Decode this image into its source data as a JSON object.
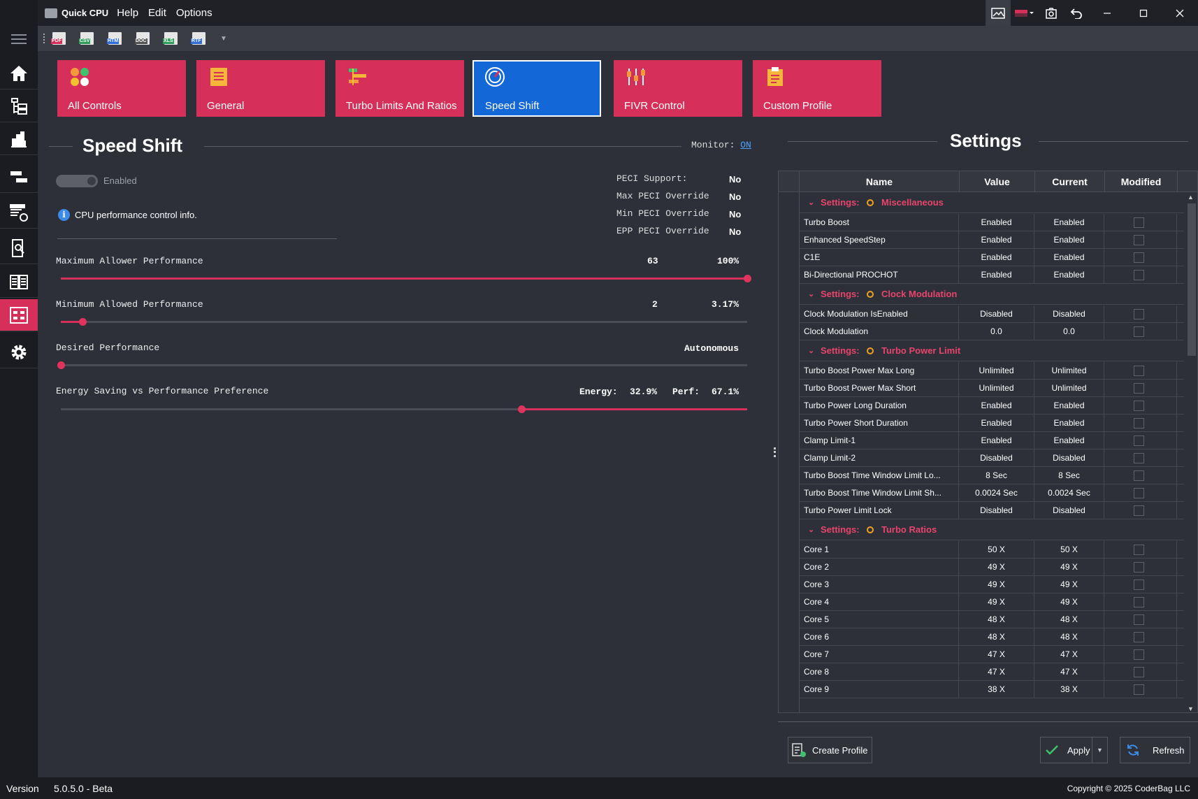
{
  "titlebar": {
    "app_name": "Quick CPU",
    "menus": [
      "Help",
      "Edit",
      "Options"
    ]
  },
  "toolbar": {
    "file_types": [
      "PDF",
      "CSV",
      "HTM",
      "DOC",
      "XLS",
      "RTF"
    ]
  },
  "tiles": [
    {
      "label": "All Controls"
    },
    {
      "label": "General"
    },
    {
      "label": "Turbo Limits And Ratios"
    },
    {
      "label": "Speed Shift"
    },
    {
      "label": "FIVR Control"
    },
    {
      "label": "Custom Profile"
    }
  ],
  "speed_shift": {
    "title": "Speed Shift",
    "monitor_label": "Monitor:",
    "monitor_value": "ON",
    "enabled_label": "Enabled",
    "info_text": "CPU performance control info.",
    "peci": [
      {
        "label": "PECI Support:",
        "value": "No"
      },
      {
        "label": "Max PECI Override",
        "value": "No"
      },
      {
        "label": "Min PECI Override",
        "value": "No"
      },
      {
        "label": "EPP PECI Override",
        "value": "No"
      }
    ],
    "max_perf": {
      "label": "Maximum Allower Performance",
      "value": "63",
      "percent": "100%",
      "fraction": 1.0
    },
    "min_perf": {
      "label": "Minimum Allowed Performance",
      "value": "2",
      "percent": "3.17%",
      "fraction": 0.0317
    },
    "desired": {
      "label": "Desired Performance",
      "value": "Autonomous",
      "fraction": 0.0
    },
    "epp": {
      "label": "Energy Saving vs Performance Preference",
      "energy_label": "Energy:",
      "energy": "32.9%",
      "perf_label": "Perf:",
      "perf": "67.1%",
      "fraction": 0.671
    }
  },
  "settings": {
    "title": "Settings",
    "columns": [
      "Name",
      "Value",
      "Current",
      "Modified"
    ],
    "group_prefix": "Settings:",
    "groups": [
      {
        "name": "Miscellaneous",
        "rows": [
          [
            "Turbo Boost",
            "Enabled",
            "Enabled"
          ],
          [
            "Enhanced SpeedStep",
            "Enabled",
            "Enabled"
          ],
          [
            "C1E",
            "Enabled",
            "Enabled"
          ],
          [
            "Bi-Directional PROCHOT",
            "Enabled",
            "Enabled"
          ]
        ]
      },
      {
        "name": "Clock Modulation",
        "rows": [
          [
            "Clock Modulation IsEnabled",
            "Disabled",
            "Disabled"
          ],
          [
            "Clock Modulation",
            "0.0",
            "0.0"
          ]
        ]
      },
      {
        "name": "Turbo Power Limit",
        "rows": [
          [
            "Turbo Boost Power Max Long",
            "Unlimited",
            "Unlimited"
          ],
          [
            "Turbo Boost Power Max Short",
            "Unlimited",
            "Unlimited"
          ],
          [
            "Turbo Power Long Duration",
            "Enabled",
            "Enabled"
          ],
          [
            "Turbo Power Short Duration",
            "Enabled",
            "Enabled"
          ],
          [
            "Clamp Limit-1",
            "Enabled",
            "Enabled"
          ],
          [
            "Clamp Limit-2",
            "Disabled",
            "Disabled"
          ],
          [
            "Turbo Boost Time Window Limit Lo...",
            "8 Sec",
            "8 Sec"
          ],
          [
            "Turbo Boost Time Window Limit Sh...",
            "0.0024 Sec",
            "0.0024 Sec"
          ],
          [
            "Turbo Power Limit Lock",
            "Disabled",
            "Disabled"
          ]
        ]
      },
      {
        "name": "Turbo Ratios",
        "rows": [
          [
            "Core 1",
            "50 X",
            "50 X"
          ],
          [
            "Core 2",
            "49 X",
            "49 X"
          ],
          [
            "Core 3",
            "49 X",
            "49 X"
          ],
          [
            "Core 4",
            "49 X",
            "49 X"
          ],
          [
            "Core 5",
            "48 X",
            "48 X"
          ],
          [
            "Core 6",
            "48 X",
            "48 X"
          ],
          [
            "Core 7",
            "47 X",
            "47 X"
          ],
          [
            "Core 8",
            "47 X",
            "47 X"
          ],
          [
            "Core 9",
            "38 X",
            "38 X"
          ]
        ]
      }
    ]
  },
  "buttons": {
    "create_profile": "Create Profile",
    "apply": "Apply",
    "refresh": "Refresh"
  },
  "status": {
    "version_label": "Version",
    "version": "5.0.5.0 - Beta",
    "copyright": "Copyright © 2025 CoderBag LLC"
  },
  "colors": {
    "accent": "#d6305a",
    "active_tile": "#1367d6",
    "group_text": "#e8446d"
  }
}
